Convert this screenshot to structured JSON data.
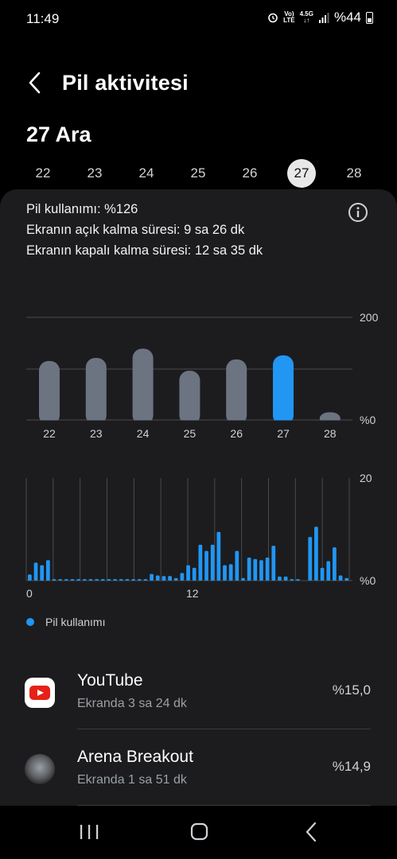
{
  "status": {
    "time": "11:49",
    "network_top": "Vo)",
    "network_bottom": "LTE",
    "signal_top": "4.5G",
    "signal_bottom": "↓↑",
    "battery": "%44"
  },
  "header": {
    "title": "Pil aktivitesi"
  },
  "date_title": "27 Ara",
  "days": [
    "22",
    "23",
    "24",
    "25",
    "26",
    "27",
    "28"
  ],
  "selected_day": "27",
  "summary": {
    "usage": "Pil kullanımı: %126",
    "screen_on": "Ekranın açık kalma süresi: 9 sa 26 dk",
    "screen_off": "Ekranın kapalı kalma süresi: 12 sa 35 dk"
  },
  "colors": {
    "accent": "#2196f3",
    "bar_gray": "#6c7482",
    "card_bg": "#1c1c1e"
  },
  "chart_data": [
    {
      "type": "bar",
      "categories": [
        "22",
        "23",
        "24",
        "25",
        "26",
        "27",
        "28"
      ],
      "values": [
        115,
        121,
        139,
        96,
        118,
        126,
        15
      ],
      "highlight": "27",
      "y_tick_labels": [
        "%0",
        "200"
      ],
      "ylim": [
        0,
        200
      ],
      "grid": true
    },
    {
      "type": "bar",
      "x_tick_labels": [
        "0",
        "12"
      ],
      "y_tick_labels": [
        "%0",
        "20"
      ],
      "ylim": [
        0,
        20
      ],
      "series": [
        {
          "name": "Pil kullanımı",
          "values": [
            1.2,
            3.5,
            3.0,
            4.0,
            0.3,
            0.3,
            0.3,
            0.3,
            0.3,
            0.3,
            0.3,
            0.3,
            0.3,
            0.3,
            0.3,
            0.3,
            0.3,
            0.3,
            0.3,
            0.3,
            1.3,
            1.0,
            0.9,
            0.9,
            0.5,
            1.5,
            3.0,
            2.5,
            7.0,
            5.8,
            7.0,
            9.5,
            3.0,
            3.2,
            5.8,
            0.5,
            4.5,
            4.2,
            4.0,
            4.5,
            6.8,
            0.8,
            0.8,
            0.3,
            0.3,
            0,
            8.5,
            10.5,
            2.5,
            3.8,
            6.5,
            1.0,
            0.5
          ]
        }
      ],
      "grid": true
    }
  ],
  "legend": {
    "label": "Pil kullanımı"
  },
  "apps": [
    {
      "icon": "youtube-icon",
      "name": "YouTube",
      "sub": "Ekranda 3 sa 24 dk",
      "pct": "%15,0"
    },
    {
      "icon": "arena-breakout-icon",
      "name": "Arena Breakout",
      "sub": "Ekranda 1 sa 51 dk",
      "pct": "%14,9"
    }
  ],
  "nav": {
    "icons": [
      "recents-icon",
      "home-icon",
      "back-icon"
    ]
  }
}
